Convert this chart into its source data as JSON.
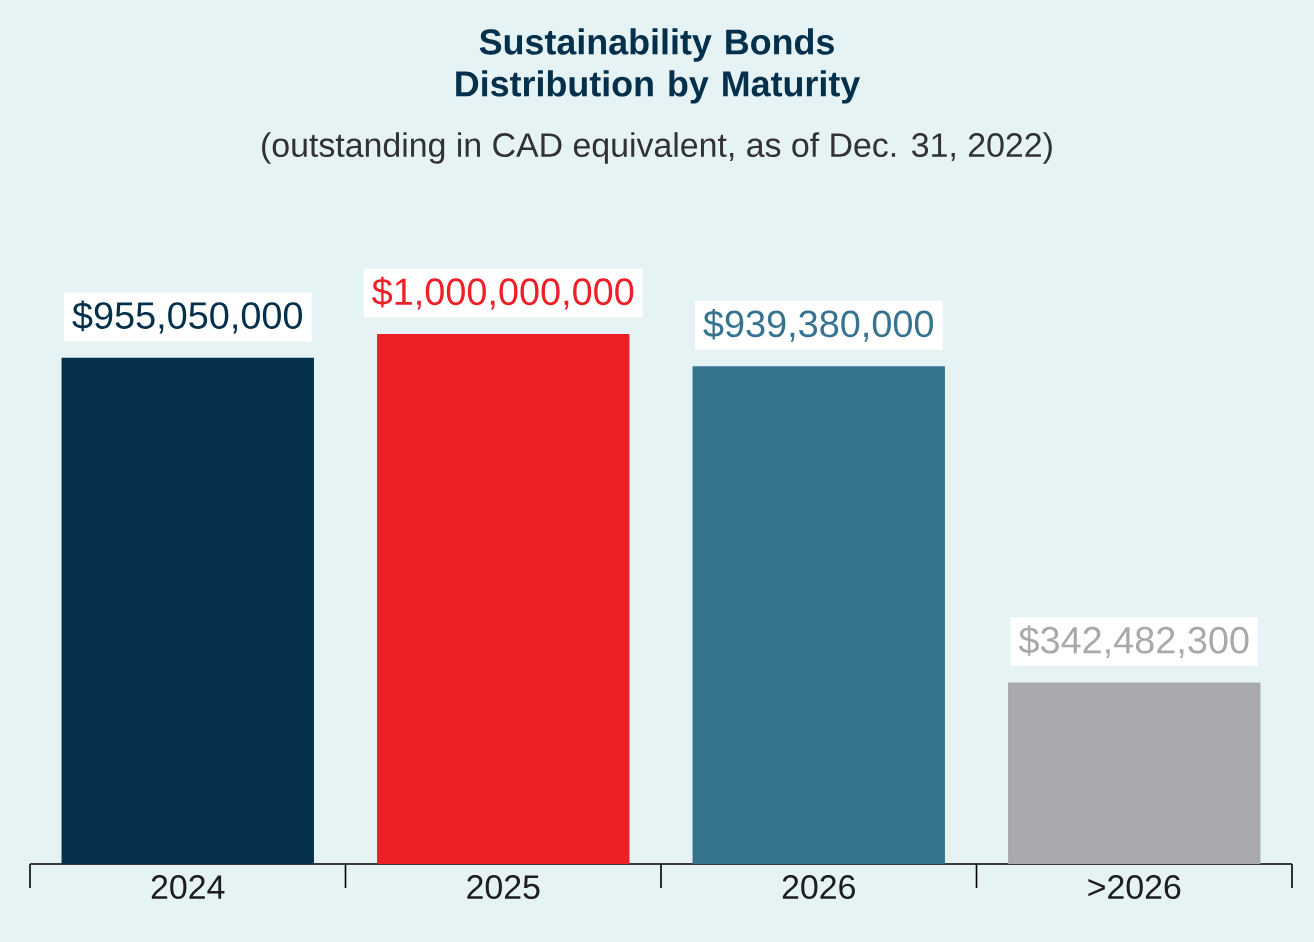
{
  "chart_data": {
    "type": "bar",
    "title": "Sustainability Bonds Distribution by Maturity",
    "subtitle": "(outstanding in CAD equivalent, as of Dec. 31, 2022)",
    "categories": [
      "2024",
      "2025",
      "2026",
      ">2026"
    ],
    "values": [
      955050000,
      1000000000,
      939380000,
      342482300
    ],
    "colors": [
      "#04304b",
      "#ee1f26",
      "#35738f",
      "#a7a9ac"
    ],
    "value_labels": [
      "$955,050,000",
      "$1,000,000,000",
      "$939,380,000",
      "$342,482,300"
    ]
  }
}
